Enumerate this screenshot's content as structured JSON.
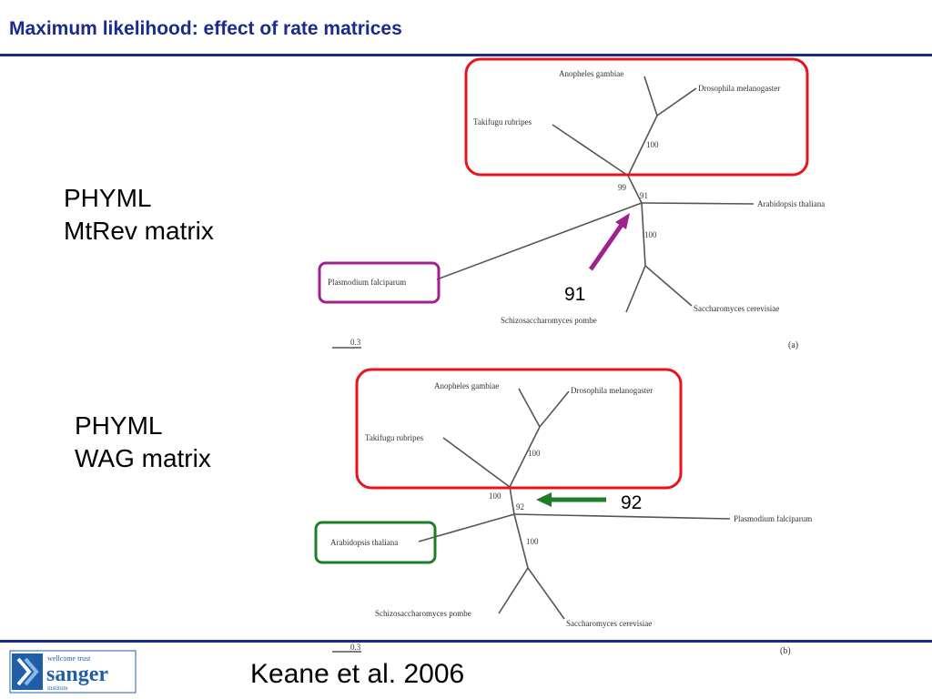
{
  "slide": {
    "title": "Maximum likelihood: effect of rate matrices",
    "citation": "Keane et al. 2006"
  },
  "panel_a": {
    "program": "PHYML",
    "matrix": "MtRev matrix",
    "highlight_value": "91",
    "panel_tag": "(a)",
    "scale": "0.3",
    "taxa": {
      "anopheles": "Anopheles gambiae",
      "drosophila": "Drosophila melanogaster",
      "takifugu": "Takifugu rubripes",
      "arabidopsis": "Arabidopsis thaliana",
      "plasmodium": "Plasmodium falciparum",
      "saccharomyces": "Saccharomyces cerevisiae",
      "schizo": "Schizosaccharomyces pombe"
    },
    "bootstrap": {
      "b100_top": "100",
      "b99": "99",
      "b91": "91",
      "b100_bottom": "100"
    }
  },
  "panel_b": {
    "program": "PHYML",
    "matrix": "WAG matrix",
    "highlight_value": "92",
    "panel_tag": "(b)",
    "scale": "0.3",
    "taxa": {
      "anopheles": "Anopheles gambiae",
      "drosophila": "Drosophila melanogaster",
      "takifugu": "Takifugu rubripes",
      "arabidopsis": "Arabidopsis thaliana",
      "plasmodium": "Plasmodium falciparum",
      "saccharomyces": "Saccharomyces cerevisiae",
      "schizo": "Schizosaccharomyces pombe"
    },
    "bootstrap": {
      "b100_top": "100",
      "b100_mid": "100",
      "b92": "92",
      "b100_bottom": "100"
    }
  },
  "logo": {
    "line1": "wellcome trust",
    "line2": "sanger",
    "line3": "institute"
  },
  "colors": {
    "title": "#1a2b8f",
    "rule": "#1a2b8f",
    "clade_box": "#e8141c",
    "plasmodium_box": "#a0208c",
    "arabidopsis_box": "#1e7d2a",
    "purple_arrow": "#a0208c",
    "green_arrow": "#1e7d2a",
    "logo_blue": "#1f5fa8"
  }
}
